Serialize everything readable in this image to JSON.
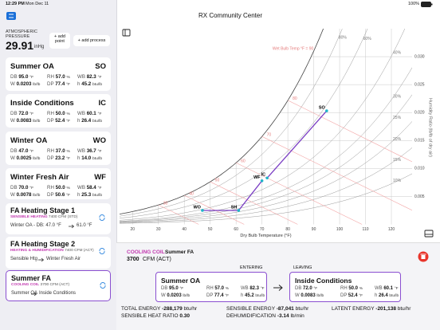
{
  "status": {
    "time": "12:29 PM",
    "date": "Mon Dec 11",
    "battery": "100%"
  },
  "pressure": {
    "label": "ATMOSPHERIC PRESSURE",
    "value": "29.91",
    "unit": "inHg"
  },
  "buttons": [
    "+ add point",
    "+ add process"
  ],
  "points": [
    {
      "name": "Summer OA",
      "code": "SO",
      "rows": [
        [
          [
            "DB",
            "95.0",
            "°F"
          ],
          [
            "RH",
            "57.0",
            "%"
          ],
          [
            "WB",
            "82.3",
            "°F"
          ]
        ],
        [
          [
            "W",
            "0.0203",
            "lb/lb"
          ],
          [
            "DP",
            "77.4",
            "°F"
          ],
          [
            "h",
            "45.2",
            "btu/lb"
          ]
        ]
      ]
    },
    {
      "name": "Inside Conditions",
      "code": "IC",
      "rows": [
        [
          [
            "DB",
            "72.0",
            "°F"
          ],
          [
            "RH",
            "50.0",
            "%"
          ],
          [
            "WB",
            "60.1",
            "°F"
          ]
        ],
        [
          [
            "W",
            "0.0083",
            "lb/lb"
          ],
          [
            "DP",
            "52.4",
            "°F"
          ],
          [
            "h",
            "26.4",
            "btu/lb"
          ]
        ]
      ]
    },
    {
      "name": "Winter OA",
      "code": "WO",
      "rows": [
        [
          [
            "DB",
            "47.0",
            "°F"
          ],
          [
            "RH",
            "37.0",
            "%"
          ],
          [
            "WB",
            "36.7",
            "°F"
          ]
        ],
        [
          [
            "W",
            "0.0025",
            "lb/lb"
          ],
          [
            "DP",
            "23.2",
            "°F"
          ],
          [
            "h",
            "14.0",
            "btu/lb"
          ]
        ]
      ]
    },
    {
      "name": "Winter Fresh Air",
      "code": "WF",
      "rows": [
        [
          [
            "DB",
            "70.0",
            "°F"
          ],
          [
            "RH",
            "50.0",
            "%"
          ],
          [
            "WB",
            "58.4",
            "°F"
          ]
        ],
        [
          [
            "W",
            "0.0078",
            "lb/lb"
          ],
          [
            "DP",
            "50.6",
            "°F"
          ],
          [
            "h",
            "25.3",
            "btu/lb"
          ]
        ]
      ]
    }
  ],
  "processes": [
    {
      "name": "FA Heating Stage 1",
      "kind": "SENSIBLE HEATING",
      "cfm": "7400 CFM (STD)",
      "path": [
        "Winter OA - DB: 47.0 °F",
        "61.0 °F"
      ]
    },
    {
      "name": "FA Heating Stage 2",
      "kind": "HEATING & HUMIDIFICATION",
      "cfm": "7400 CFM (ACT)",
      "path": [
        "Sensible Htg",
        "Winter Fresh Air"
      ]
    },
    {
      "name": "Summer FA",
      "kind": "COOLING COIL",
      "cfm": "3700 CFM (ACT)",
      "path": [
        "Summer OA",
        "Inside Conditions"
      ]
    }
  ],
  "title": "RX Community Center",
  "chart": {
    "type": "psychrometric",
    "xlabel": "Dry Bulb Temperature (°F)",
    "ylabel": "Humidity Ratio (lb/lb of dry air)",
    "xlim": [
      15,
      128
    ],
    "ylim": [
      0,
      0.035
    ],
    "xticks": [
      20,
      30,
      40,
      50,
      60,
      70,
      80,
      90,
      100,
      110,
      120
    ],
    "yticks": [
      0.005,
      {
        "value": 0.01,
        "label": "0.010"
      },
      0.015,
      {
        "value": 0.02,
        "label": "0.020"
      },
      0.025,
      {
        "value": 0.03,
        "label": "0.030"
      }
    ],
    "rh_curves": [
      {
        "value": 10,
        "label": "10%"
      },
      {
        "value": 15,
        "label": "15%"
      },
      {
        "value": 20,
        "label": "20%"
      },
      {
        "value": 25,
        "label": "25%"
      },
      {
        "value": 30,
        "label": "30%"
      },
      {
        "value": 40,
        "label": "40%"
      },
      {
        "value": 60,
        "label": "60%"
      },
      {
        "value": 80,
        "label": "80%"
      }
    ],
    "wb_lines": [
      30,
      40,
      50,
      60,
      70,
      80
    ],
    "wb_note": "Wet Bulb Temp °F = 90",
    "process_color": "#7b3fc4",
    "point_color": "#1fb5c9",
    "lines": [
      {
        "x": [
          47,
          61,
          70
        ],
        "y": [
          0.0025,
          0.0025,
          0.0078
        ]
      },
      {
        "x": [
          95,
          72
        ],
        "y": [
          0.0203,
          0.0083
        ]
      }
    ],
    "points": [
      {
        "label": "SO",
        "x": 95,
        "y": 0.0203
      },
      {
        "label": "IC",
        "x": 72,
        "y": 0.0083
      },
      {
        "label": "WO",
        "x": 47,
        "y": 0.0025
      },
      {
        "label": "WF",
        "x": 70,
        "y": 0.0078
      },
      {
        "label": "SH",
        "x": 61,
        "y": 0.0025
      }
    ]
  },
  "detail": {
    "kind": "COOLING COIL",
    "name": "Summer FA",
    "cfm": "3700",
    "cfm_unit": "CFM (ACT)",
    "entering_label": "ENTERING",
    "leaving_label": "LEAVING",
    "entering": {
      "name": "Summer OA",
      "rows": [
        [
          [
            "DB",
            "95.0",
            "°F"
          ],
          [
            "RH",
            "57.0",
            "%"
          ],
          [
            "WB",
            "82.3",
            "°F"
          ]
        ],
        [
          [
            "W",
            "0.0203",
            "lb/lb"
          ],
          [
            "DP",
            "77.4",
            "°F"
          ],
          [
            "h",
            "45.2",
            "btu/lb"
          ]
        ]
      ]
    },
    "leaving": {
      "name": "Inside Conditions",
      "rows": [
        [
          [
            "DB",
            "72.0",
            "°F"
          ],
          [
            "RH",
            "50.0",
            "%"
          ],
          [
            "WB",
            "60.1",
            "°F"
          ]
        ],
        [
          [
            "W",
            "0.0083",
            "lb/lb"
          ],
          [
            "DP",
            "52.4",
            "°F"
          ],
          [
            "h",
            "26.4",
            "btu/lb"
          ]
        ]
      ]
    },
    "totals": [
      [
        "TOTAL ENERGY",
        "-288,179",
        "btu/hr"
      ],
      [
        "SENSIBLE ENERGY",
        "-87,041",
        "btu/hr"
      ],
      [
        "LATENT ENERGY",
        "-201,138",
        "btu/hr"
      ],
      [
        "SENSIBLE HEAT RATIO",
        "0.30"
      ],
      [
        "DEHUMIDIFICATION",
        "-3.14",
        "lb/min"
      ]
    ]
  }
}
